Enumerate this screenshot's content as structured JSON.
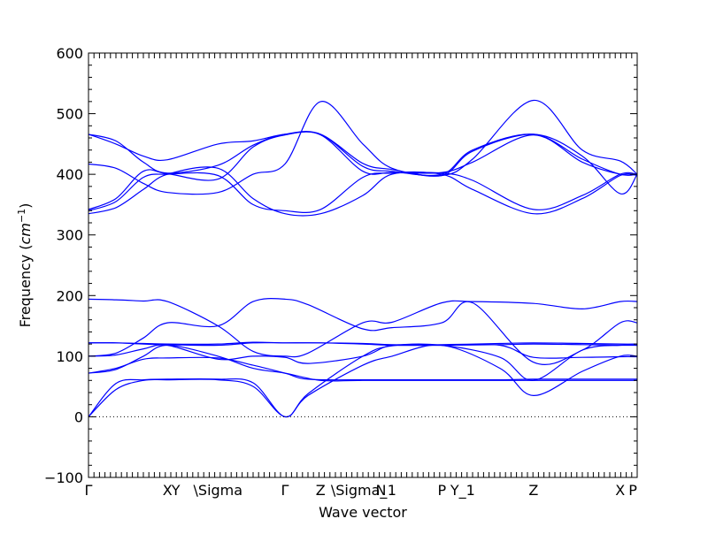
{
  "chart_data": {
    "type": "line",
    "title": "",
    "xlabel": "Wave vector",
    "ylabel": "Frequency",
    "ylabel_unit": "cm",
    "ylabel_unit_exp": "−1",
    "ylim": [
      -100,
      600
    ],
    "yticks": [
      -100,
      0,
      100,
      200,
      300,
      400,
      500,
      600
    ],
    "xlim": [
      0,
      1
    ],
    "grid": false,
    "zero_line": 0,
    "kpoints": [
      {
        "label": "Γ",
        "pos": 0.0
      },
      {
        "label": "X",
        "pos": 0.144
      },
      {
        "label": "Y",
        "pos": 0.159
      },
      {
        "label": "\\Sigma",
        "pos": 0.236
      },
      {
        "label": "Γ",
        "pos": 0.358
      },
      {
        "label": "Z",
        "pos": 0.423
      },
      {
        "label": "\\Sigma_",
        "pos": 0.493
      },
      {
        "label": "N",
        "pos": 0.533
      },
      {
        "label": "1",
        "pos": 0.553
      },
      {
        "label": "P",
        "pos": 0.644
      },
      {
        "label": "Y_1",
        "pos": 0.682
      },
      {
        "label": "Z",
        "pos": 0.811
      },
      {
        "label": "X",
        "pos": 0.969
      },
      {
        "label": "P",
        "pos": 0.992
      }
    ],
    "series": [
      {
        "x": [
          0,
          0.05,
          0.1,
          0.144,
          0.236,
          0.3,
          0.358,
          0.4,
          0.5,
          0.553,
          0.644,
          0.75,
          0.811,
          0.9,
          0.969,
          1
        ],
        "values": [
          0,
          45,
          60,
          61,
          61,
          50,
          0,
          35,
          85,
          100,
          118,
          80,
          35,
          75,
          100,
          100
        ]
      },
      {
        "x": [
          0,
          0.05,
          0.1,
          0.144,
          0.236,
          0.3,
          0.358,
          0.4,
          0.5,
          0.553,
          0.644,
          0.75,
          0.811,
          0.9,
          0.969,
          1
        ],
        "values": [
          0,
          55,
          61,
          62,
          62,
          56,
          0,
          38,
          100,
          117,
          118,
          98,
          60,
          110,
          118,
          118
        ]
      },
      {
        "x": [
          0,
          0.05,
          0.1,
          0.144,
          0.236,
          0.3,
          0.358,
          0.4,
          0.5,
          0.553,
          0.644,
          0.75,
          0.811,
          0.9,
          0.969,
          1
        ],
        "values": [
          72,
          80,
          95,
          97,
          97,
          85,
          72,
          62,
          61,
          61,
          61,
          61,
          62,
          62,
          62,
          62
        ]
      },
      {
        "x": [
          0,
          0.05,
          0.1,
          0.144,
          0.236,
          0.3,
          0.358,
          0.423,
          0.5,
          0.553,
          0.644,
          0.75,
          0.811,
          0.9,
          0.969,
          1
        ],
        "values": [
          72,
          78,
          100,
          118,
          100,
          80,
          72,
          60,
          60,
          60,
          60,
          60,
          60,
          60,
          60,
          60
        ]
      },
      {
        "x": [
          0,
          0.05,
          0.1,
          0.144,
          0.236,
          0.3,
          0.358,
          0.4,
          0.5,
          0.553,
          0.644,
          0.75,
          0.811,
          0.9,
          0.969,
          1
        ],
        "values": [
          100,
          102,
          112,
          118,
          95,
          100,
          98,
          88,
          100,
          118,
          118,
          118,
          98,
          98,
          99,
          99
        ]
      },
      {
        "x": [
          0,
          0.05,
          0.1,
          0.144,
          0.236,
          0.3,
          0.358,
          0.423,
          0.5,
          0.553,
          0.644,
          0.75,
          0.811,
          0.9,
          0.969,
          1
        ],
        "values": [
          122,
          122,
          120,
          119,
          118,
          122,
          122,
          122,
          120,
          118,
          118,
          119,
          120,
          119,
          118,
          118
        ]
      },
      {
        "x": [
          0,
          0.05,
          0.1,
          0.144,
          0.236,
          0.3,
          0.358,
          0.423,
          0.5,
          0.553,
          0.644,
          0.75,
          0.811,
          0.9,
          0.969,
          1
        ],
        "values": [
          122,
          122,
          121,
          120,
          120,
          123,
          122,
          122,
          121,
          119,
          119,
          121,
          122,
          121,
          120,
          120
        ]
      },
      {
        "x": [
          0,
          0.05,
          0.1,
          0.144,
          0.236,
          0.3,
          0.358,
          0.4,
          0.5,
          0.553,
          0.644,
          0.7,
          0.811,
          0.9,
          0.969,
          1
        ],
        "values": [
          100,
          105,
          130,
          155,
          150,
          190,
          194,
          185,
          145,
          147,
          155,
          188,
          90,
          110,
          155,
          155
        ]
      },
      {
        "x": [
          0,
          0.05,
          0.1,
          0.144,
          0.236,
          0.3,
          0.358,
          0.4,
          0.5,
          0.553,
          0.644,
          0.7,
          0.811,
          0.9,
          0.969,
          1
        ],
        "values": [
          194,
          193,
          191,
          190,
          150,
          108,
          100,
          105,
          155,
          156,
          188,
          190,
          187,
          178,
          190,
          190
        ]
      },
      {
        "x": [
          0,
          0.05,
          0.1,
          0.144,
          0.236,
          0.3,
          0.358,
          0.423,
          0.5,
          0.553,
          0.644,
          0.7,
          0.811,
          0.9,
          0.969,
          1
        ],
        "values": [
          335,
          345,
          375,
          400,
          410,
          360,
          335,
          335,
          365,
          400,
          400,
          375,
          335,
          360,
          398,
          398
        ]
      },
      {
        "x": [
          0,
          0.05,
          0.1,
          0.144,
          0.236,
          0.3,
          0.358,
          0.423,
          0.5,
          0.553,
          0.644,
          0.7,
          0.811,
          0.9,
          0.969,
          1
        ],
        "values": [
          340,
          355,
          395,
          400,
          398,
          350,
          340,
          342,
          395,
          402,
          402,
          390,
          342,
          365,
          400,
          400
        ]
      },
      {
        "x": [
          0,
          0.05,
          0.1,
          0.144,
          0.236,
          0.3,
          0.358,
          0.423,
          0.5,
          0.553,
          0.644,
          0.7,
          0.811,
          0.9,
          0.969,
          1
        ],
        "values": [
          342,
          360,
          405,
          401,
          392,
          445,
          465,
          465,
          405,
          403,
          403,
          420,
          465,
          420,
          400,
          400
        ]
      },
      {
        "x": [
          0,
          0.05,
          0.1,
          0.144,
          0.236,
          0.3,
          0.358,
          0.423,
          0.5,
          0.553,
          0.644,
          0.7,
          0.811,
          0.9,
          0.969,
          1
        ],
        "values": [
          417,
          410,
          385,
          370,
          370,
          400,
          417,
          520,
          450,
          410,
          398,
          425,
          522,
          440,
          422,
          400
        ]
      },
      {
        "x": [
          0,
          0.05,
          0.1,
          0.144,
          0.236,
          0.3,
          0.358,
          0.423,
          0.5,
          0.553,
          0.644,
          0.7,
          0.811,
          0.9,
          0.969,
          1
        ],
        "values": [
          466,
          455,
          420,
          402,
          415,
          448,
          466,
          466,
          413,
          405,
          400,
          440,
          466,
          425,
          400,
          400
        ]
      },
      {
        "x": [
          0,
          0.05,
          0.1,
          0.144,
          0.236,
          0.3,
          0.358,
          0.423,
          0.5,
          0.553,
          0.644,
          0.7,
          0.811,
          0.9,
          0.969,
          1
        ],
        "values": [
          466,
          450,
          430,
          424,
          450,
          455,
          466,
          466,
          418,
          408,
          398,
          438,
          466,
          430,
          368,
          400
        ]
      }
    ],
    "line_color": "#0000ff"
  }
}
